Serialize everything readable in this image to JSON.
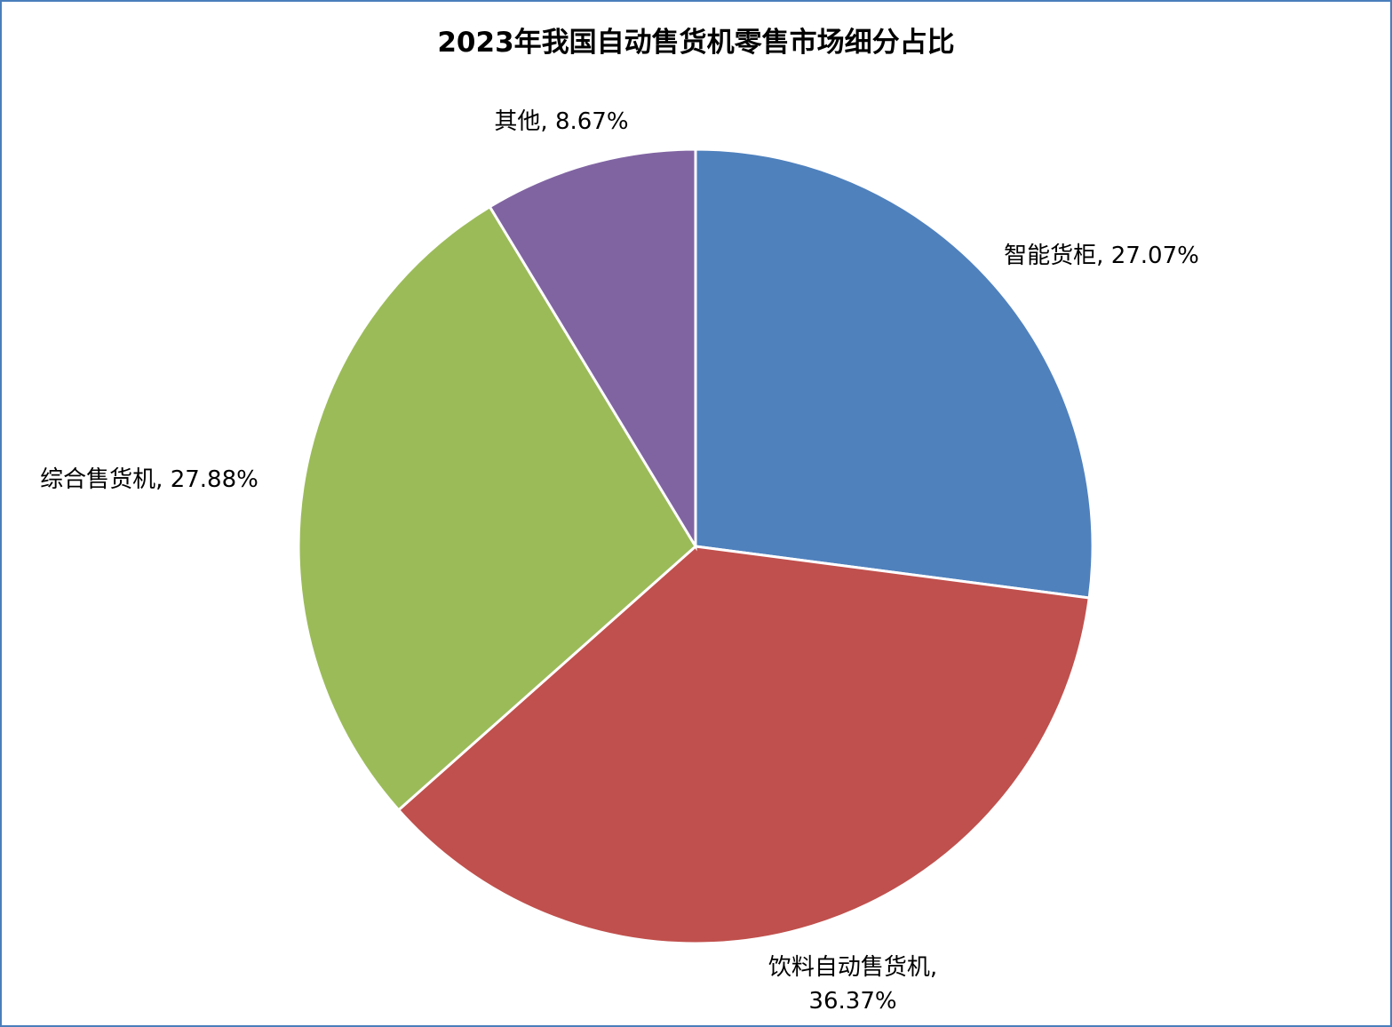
{
  "chart_data": {
    "type": "pie",
    "title": "2023年我国自动售货机零售市场细分占比",
    "labels": [
      "智能货柜, 27.07%",
      "饮料自动售货机, 36.37%",
      "综合售货机, 27.88%",
      "其他, 8.67%"
    ],
    "values": [
      27.07,
      36.37,
      27.88,
      8.67
    ],
    "colors": [
      "#4f81bd",
      "#c0504d",
      "#9bbb59",
      "#8064a2"
    ]
  }
}
